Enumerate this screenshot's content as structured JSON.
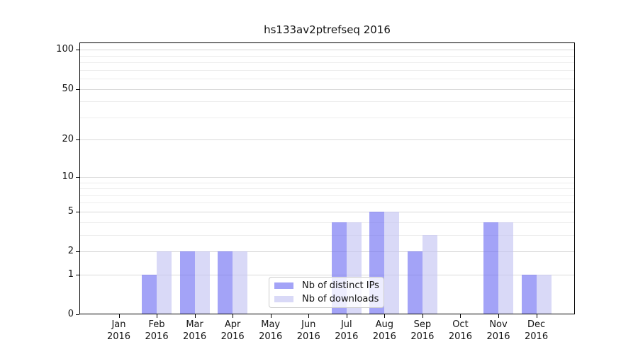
{
  "title": "hs133av2ptrefseq 2016",
  "chart_data": {
    "type": "bar",
    "title": "hs133av2ptrefseq 2016",
    "months": [
      "Jan",
      "Feb",
      "Mar",
      "Apr",
      "May",
      "Jun",
      "Jul",
      "Aug",
      "Sep",
      "Oct",
      "Nov",
      "Dec"
    ],
    "year": "2016",
    "categories": [
      "Jan 2016",
      "Feb 2016",
      "Mar 2016",
      "Apr 2016",
      "May 2016",
      "Jun 2016",
      "Jul 2016",
      "Aug 2016",
      "Sep 2016",
      "Oct 2016",
      "Nov 2016",
      "Dec 2016"
    ],
    "series": [
      {
        "name": "Nb of distinct IPs",
        "color": "rgba(107,107,242,0.62)",
        "apparent_color": "#a6a6f7",
        "values": [
          0,
          1,
          2,
          2,
          0,
          0,
          4,
          5,
          2,
          0,
          4,
          1
        ]
      },
      {
        "name": "Nb of downloads",
        "color": "rgba(193,193,242,0.62)",
        "apparent_color": "#d9d9f7",
        "values": [
          0,
          2,
          2,
          2,
          0,
          0,
          4,
          5,
          3,
          0,
          4,
          1
        ]
      }
    ],
    "y_axis": {
      "scale": "log10(1+x)",
      "major_ticks": [
        0,
        1,
        2,
        5,
        10,
        20,
        50,
        100
      ],
      "minor_ticks": [
        3,
        4,
        6,
        7,
        8,
        9,
        30,
        40,
        60,
        70,
        80,
        90
      ],
      "ylim": [
        0,
        112
      ]
    },
    "grid": {
      "orientation": "horizontal",
      "major_color": "#d9d9d9",
      "minor_color": "#ededed"
    },
    "legend": {
      "background": "rgba(255,255,255,0.8)",
      "border_color": "#cccccc",
      "position": "inside lower-center"
    },
    "frame_color": "#000000"
  }
}
